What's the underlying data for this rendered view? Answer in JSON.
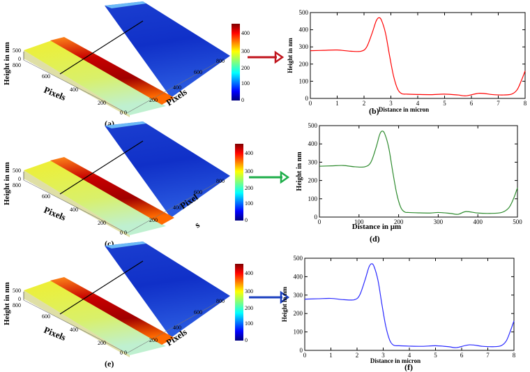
{
  "figure": {
    "rows": [
      {
        "panel_3d_label": "(a)",
        "panel_2d_label": "(b)",
        "zlabel_3d": "Height in nm",
        "xlabel_3d": "Pixels",
        "ylabel_3d": "Pixels",
        "z_ticks": [
          "500",
          "0"
        ],
        "left_ticks": [
          "800",
          "600",
          "400",
          "200",
          "0"
        ],
        "right_ticks": [
          "0",
          "200",
          "400",
          "600",
          "800"
        ],
        "colorbar_ticks": [
          "400",
          "300",
          "200",
          "100",
          "0"
        ],
        "arrow_color": "#c0141c"
      },
      {
        "panel_3d_label": "(c)",
        "panel_2d_label": "(d)",
        "zlabel_3d": "Height in nm",
        "xlabel_3d": "Pixels",
        "ylabel_3d_line1": "Pixel",
        "ylabel_3d_line2": "s",
        "z_ticks": [
          "500",
          "0"
        ],
        "left_ticks": [
          "800",
          "600",
          "400",
          "200",
          "0"
        ],
        "right_ticks": [
          "0",
          "200",
          "400",
          "600",
          "800"
        ],
        "colorbar_ticks": [
          "400",
          "300",
          "200",
          "100",
          "0"
        ],
        "arrow_color": "#1fae4a"
      },
      {
        "panel_3d_label": "(e)",
        "panel_2d_label": "(f)",
        "zlabel_3d": "Height in nm",
        "xlabel_3d": "Pixels",
        "ylabel_3d": "Pixels",
        "z_ticks": [
          "500",
          "0"
        ],
        "left_ticks": [
          "800",
          "600",
          "400",
          "200",
          "0"
        ],
        "right_ticks": [
          "0",
          "200",
          "400",
          "600",
          "800"
        ],
        "colorbar_ticks": [
          "400",
          "300",
          "200",
          "100",
          "0"
        ],
        "arrow_color": "#1a3fbf"
      }
    ]
  },
  "chart_data": [
    {
      "type": "line",
      "panel": "(b)",
      "xlabel": "Distance in micron",
      "ylabel": "Height in nm",
      "xlim": [
        0,
        8
      ],
      "ylim": [
        0,
        500
      ],
      "xticks": [
        0,
        1,
        2,
        3,
        4,
        5,
        6,
        7,
        8
      ],
      "yticks": [
        0,
        100,
        200,
        300,
        400,
        500
      ],
      "color": "#ff0000",
      "x": [
        0,
        0.5,
        1,
        1.5,
        1.9,
        2.1,
        2.3,
        2.45,
        2.55,
        2.65,
        2.8,
        2.95,
        3.1,
        3.25,
        3.4,
        3.6,
        4,
        4.5,
        5,
        5.5,
        5.8,
        6.3,
        6.8,
        7.2,
        7.5,
        7.7,
        7.85,
        8
      ],
      "y": [
        278,
        280,
        282,
        275,
        275,
        300,
        380,
        450,
        470,
        455,
        380,
        250,
        130,
        55,
        28,
        25,
        23,
        22,
        25,
        20,
        15,
        30,
        22,
        20,
        25,
        50,
        100,
        160
      ]
    },
    {
      "type": "line",
      "panel": "(d)",
      "xlabel": "Distance in μm",
      "ylabel": "Height in nm",
      "xlim": [
        0,
        500
      ],
      "ylim": [
        0,
        500
      ],
      "xticks": [
        0,
        100,
        200,
        300,
        400,
        500
      ],
      "yticks": [
        0,
        100,
        200,
        300,
        400,
        500
      ],
      "color": "#2e8b2e",
      "x": [
        0,
        30,
        60,
        90,
        115,
        130,
        143,
        152,
        158,
        165,
        175,
        185,
        195,
        205,
        215,
        225,
        250,
        280,
        300,
        330,
        350,
        370,
        400,
        430,
        460,
        478,
        490,
        500
      ],
      "y": [
        278,
        280,
        282,
        275,
        275,
        300,
        380,
        450,
        470,
        455,
        380,
        250,
        130,
        55,
        28,
        25,
        23,
        22,
        25,
        20,
        15,
        30,
        22,
        20,
        25,
        50,
        100,
        160
      ]
    },
    {
      "type": "line",
      "panel": "(f)",
      "xlabel": "Distance in micron",
      "ylabel": "Height in nm",
      "xlim": [
        0,
        8
      ],
      "ylim": [
        0,
        500
      ],
      "xticks": [
        0,
        1,
        2,
        3,
        4,
        5,
        6,
        7,
        8
      ],
      "yticks": [
        0,
        100,
        200,
        300,
        400,
        500
      ],
      "color": "#2a2aff",
      "x": [
        0,
        0.5,
        1,
        1.5,
        1.9,
        2.1,
        2.3,
        2.45,
        2.55,
        2.65,
        2.8,
        2.95,
        3.1,
        3.25,
        3.4,
        3.6,
        4,
        4.5,
        5,
        5.5,
        5.8,
        6.3,
        6.8,
        7.2,
        7.5,
        7.7,
        7.85,
        8
      ],
      "y": [
        278,
        280,
        282,
        275,
        275,
        300,
        380,
        450,
        470,
        455,
        380,
        250,
        130,
        55,
        28,
        25,
        23,
        22,
        25,
        20,
        15,
        30,
        22,
        20,
        25,
        50,
        100,
        160
      ]
    }
  ]
}
